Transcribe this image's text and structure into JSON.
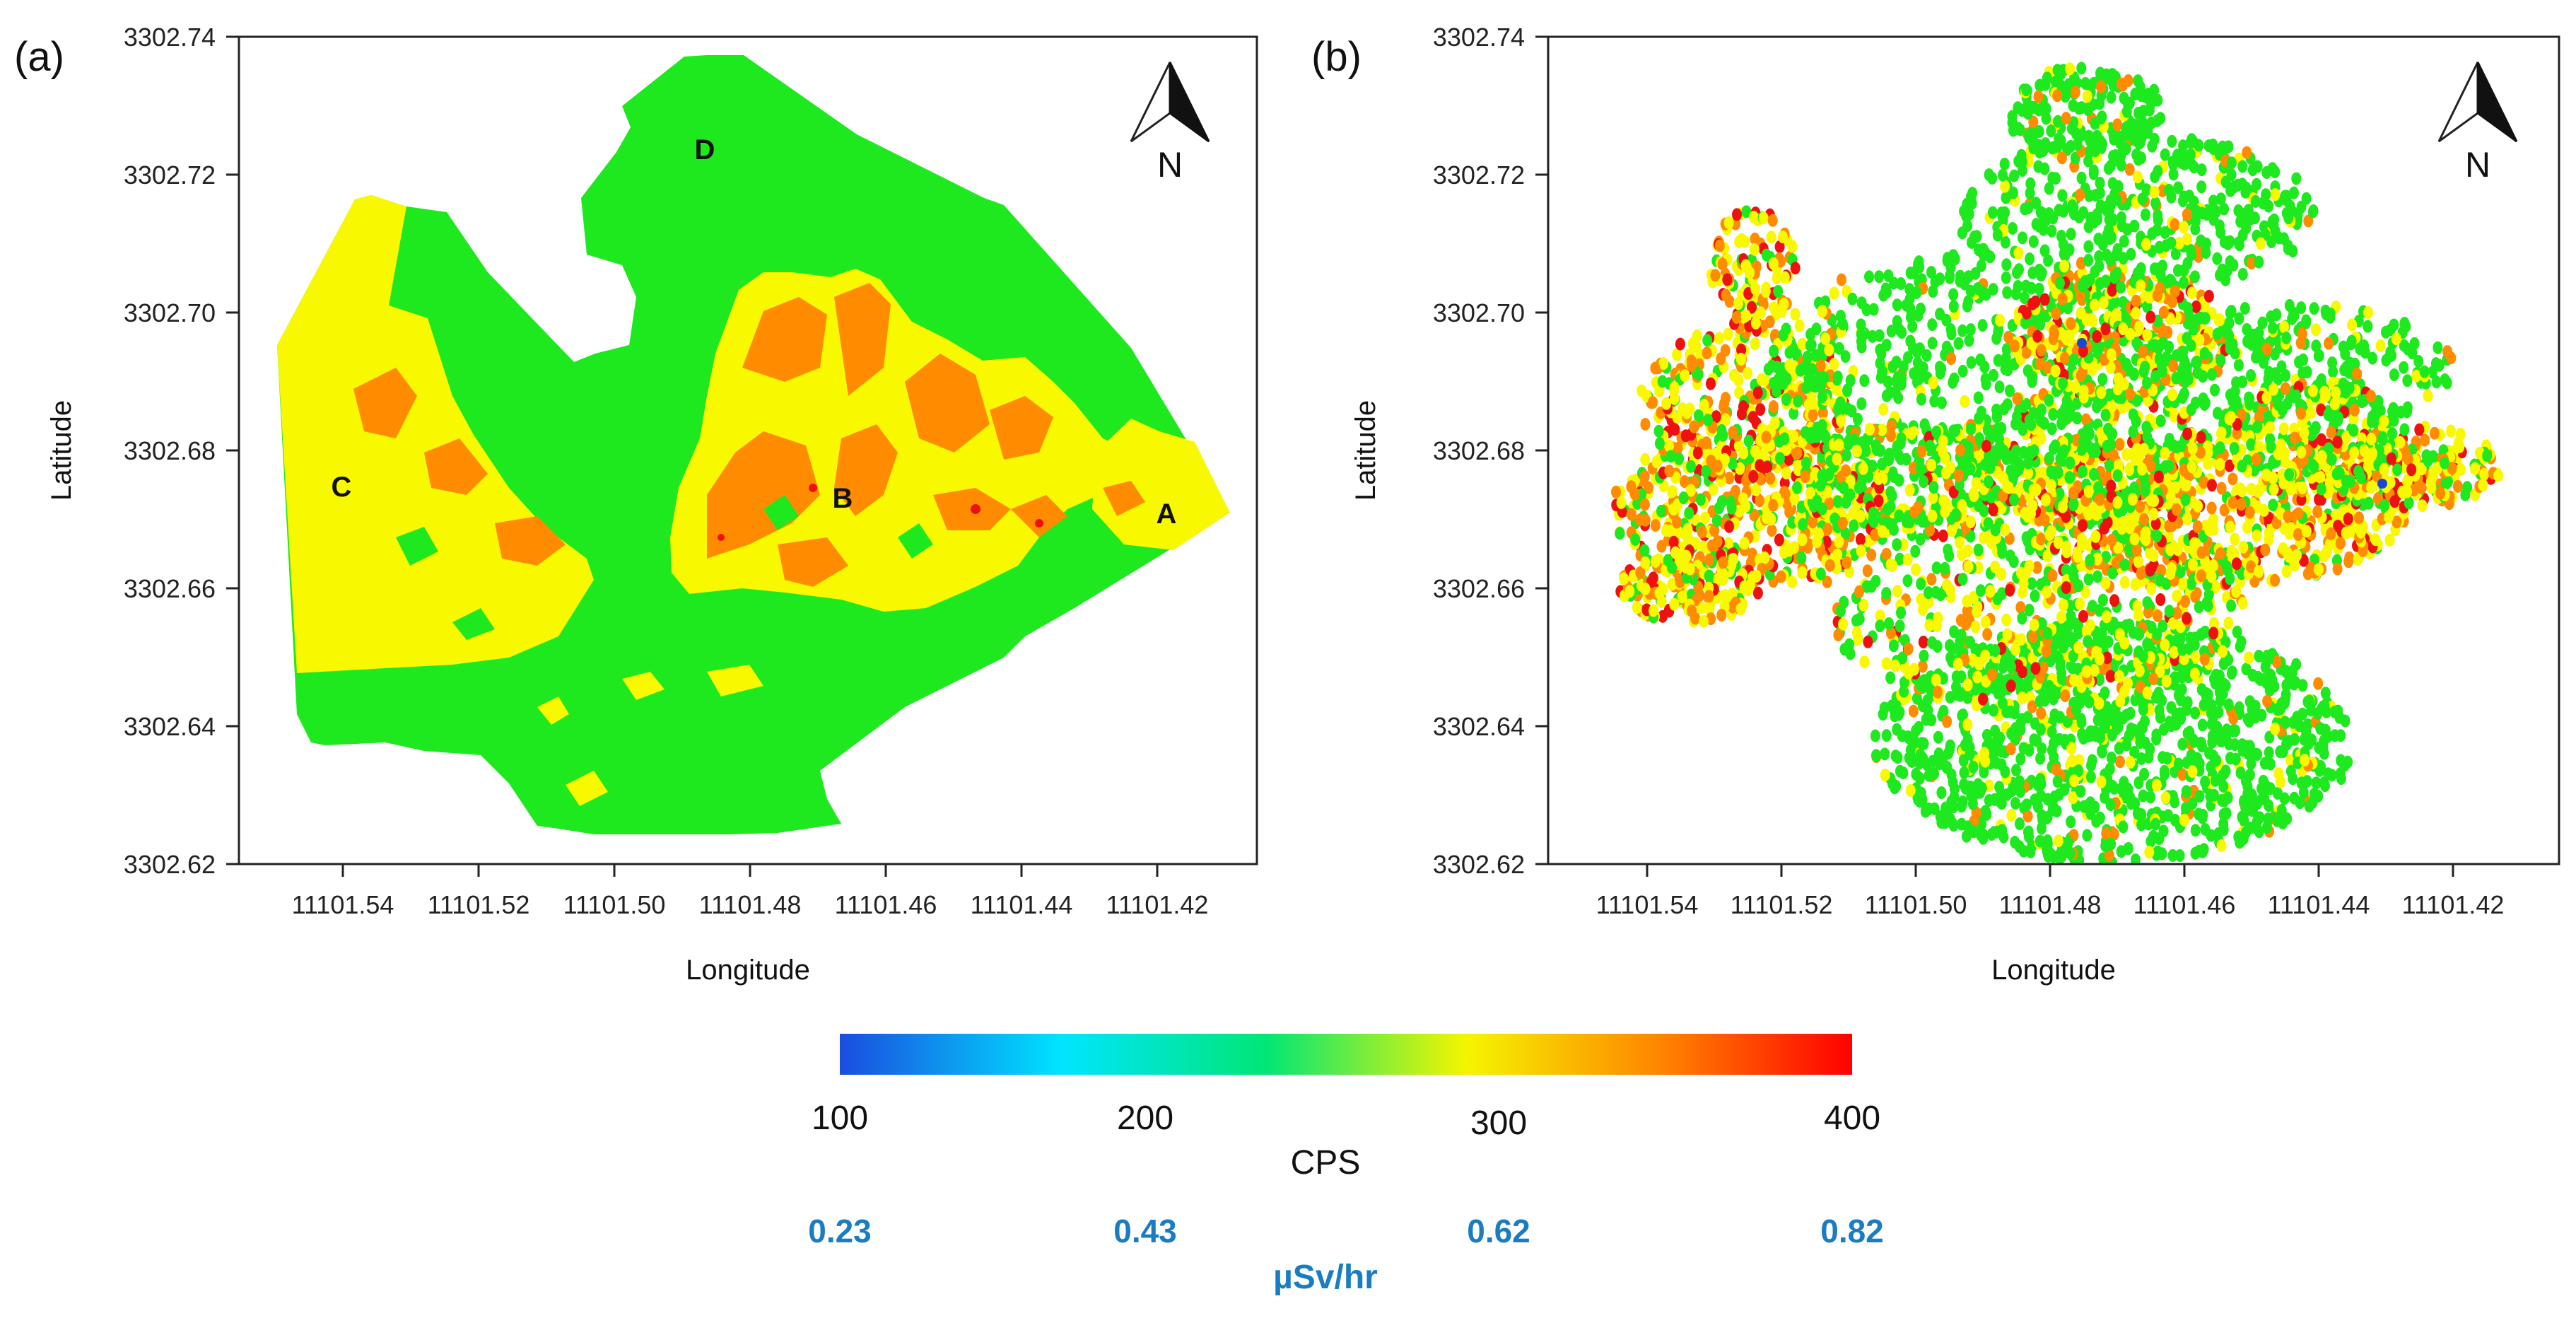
{
  "colors": {
    "green": "#1ee81e",
    "yellow": "#f8f800",
    "orange": "#ff8c00",
    "red": "#ee1111",
    "blue": "#1a47d8",
    "dose_text": "#1a7cc1"
  },
  "panels": [
    {
      "label": "(a)",
      "type": "contour map",
      "xlabel": "Longitude",
      "ylabel": "Latitude",
      "x_ticks": [
        "11101.54",
        "11101.52",
        "11101.50",
        "11101.48",
        "11101.46",
        "11101.44",
        "11101.42"
      ],
      "y_ticks": [
        "3302.74",
        "3302.72",
        "3302.70",
        "3302.68",
        "3302.66",
        "3302.64",
        "3302.62"
      ],
      "zone_labels": [
        "A",
        "B",
        "C",
        "D"
      ],
      "north_label": "N"
    },
    {
      "label": "(b)",
      "type": "point measurement map",
      "xlabel": "Longitude",
      "ylabel": "Latitude",
      "x_ticks": [
        "11101.54",
        "11101.52",
        "11101.50",
        "11101.48",
        "11101.46",
        "11101.44",
        "11101.42"
      ],
      "y_ticks": [
        "3302.74",
        "3302.72",
        "3302.70",
        "3302.68",
        "3302.66",
        "3302.64",
        "3302.62"
      ],
      "north_label": "N"
    }
  ],
  "colorbar": {
    "cps_ticks": [
      "100",
      "200",
      "300",
      "400"
    ],
    "cps_label": "CPS",
    "dose_ticks": [
      "0.23",
      "0.43",
      "0.62",
      "0.82"
    ],
    "dose_label": "µSv/hr",
    "stops": [
      "#1a4de0",
      "#00e5ff",
      "#00e676",
      "#f5f500",
      "#ff7f00",
      "#ff0000"
    ]
  }
}
